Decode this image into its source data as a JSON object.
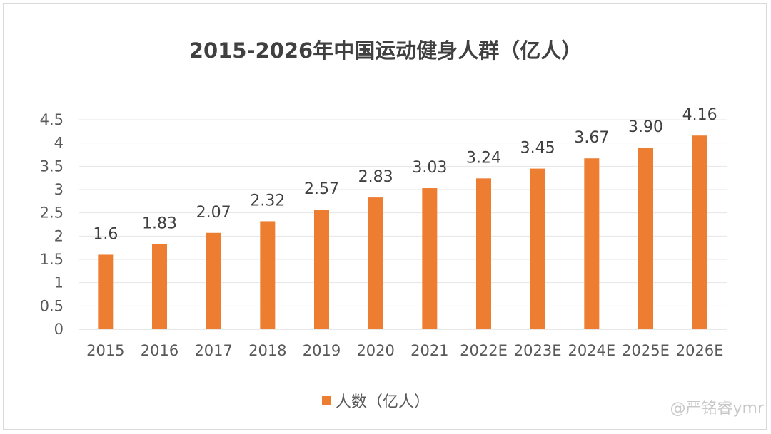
{
  "chart_data": {
    "type": "bar",
    "title": "2015-2026年中国运动健身人群（亿人）",
    "categories": [
      "2015",
      "2016",
      "2017",
      "2018",
      "2019",
      "2020",
      "2021",
      "2022E",
      "2023E",
      "2024E",
      "2025E",
      "2026E"
    ],
    "series": [
      {
        "name": "人数（亿人）",
        "values": [
          1.6,
          1.83,
          2.07,
          2.32,
          2.57,
          2.83,
          3.03,
          3.24,
          3.45,
          3.67,
          3.9,
          4.16
        ],
        "labels": [
          "1.6",
          "1.83",
          "2.07",
          "2.32",
          "2.57",
          "2.83",
          "3.03",
          "3.24",
          "3.45",
          "3.67",
          "3.90",
          "4.16"
        ],
        "color": "#ed7d31"
      }
    ],
    "yticks": [
      "0",
      "0.5",
      "1",
      "1.5",
      "2",
      "2.5",
      "3",
      "3.5",
      "4",
      "4.5"
    ],
    "ylim": [
      0,
      4.5
    ],
    "grid": true,
    "legend_position": "bottom"
  },
  "watermark": "@严铭睿ymr"
}
